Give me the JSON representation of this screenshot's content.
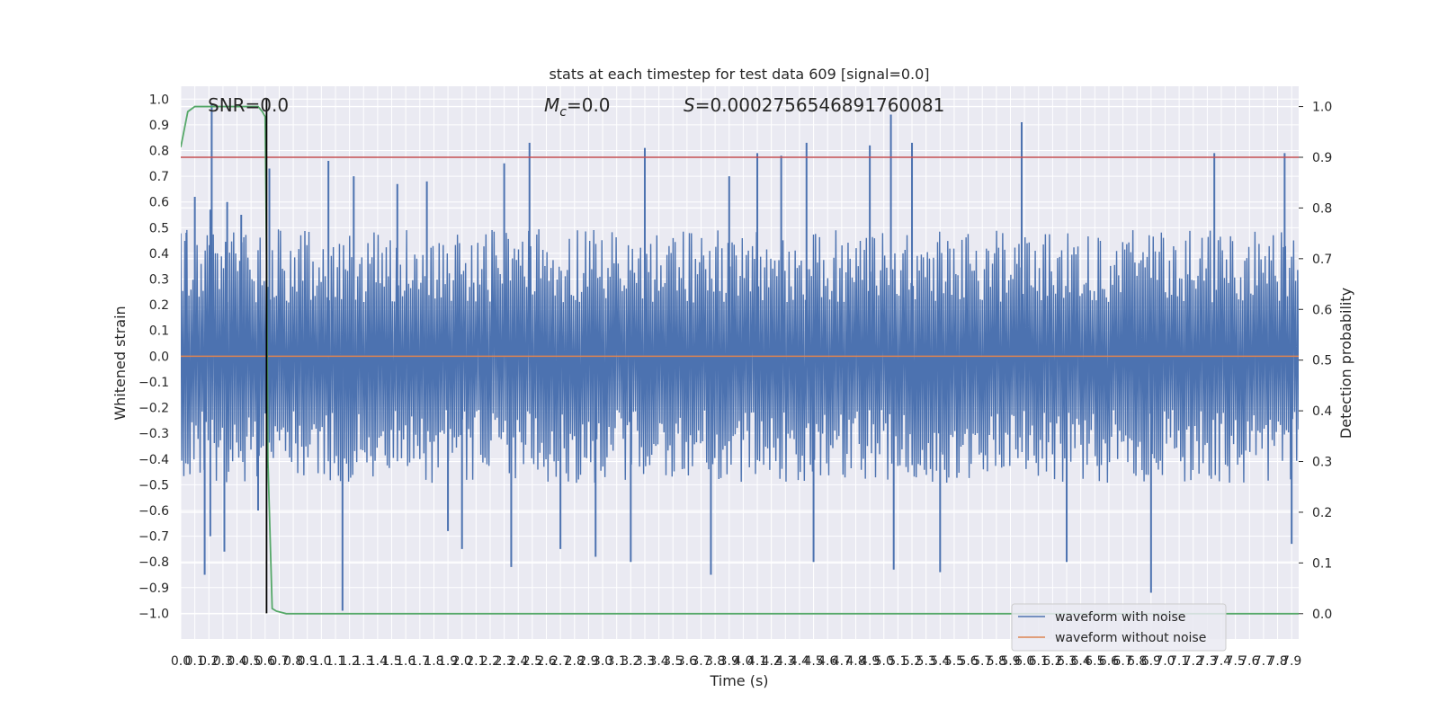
{
  "chart_data": {
    "type": "line",
    "title": "stats at each timestep for test data 609 [signal=0.0]",
    "xlabel": "Time (s)",
    "ylabel_left": "Whitened strain",
    "ylabel_right": "Detection probability",
    "xlim": [
      0.0,
      7.95
    ],
    "ylim_left": [
      -1.1,
      1.05
    ],
    "ylim_right": [
      -0.05,
      1.04
    ],
    "grid": true,
    "x_ticks": [
      "0.0",
      "0.1",
      "0.2",
      "0.3",
      "0.4",
      "0.5",
      "0.6",
      "0.7",
      "0.8",
      "0.9",
      "1.0",
      "1.1",
      "1.2",
      "1.3",
      "1.4",
      "1.5",
      "1.6",
      "1.7",
      "1.8",
      "1.9",
      "2.0",
      "2.1",
      "2.2",
      "2.3",
      "2.4",
      "2.5",
      "2.6",
      "2.7",
      "2.8",
      "2.9",
      "3.0",
      "3.1",
      "3.2",
      "3.3",
      "3.4",
      "3.5",
      "3.6",
      "3.7",
      "3.8",
      "3.9",
      "4.0",
      "4.1",
      "4.2",
      "4.3",
      "4.4",
      "4.5",
      "4.6",
      "4.7",
      "4.8",
      "4.9",
      "5.0",
      "5.1",
      "5.2",
      "5.3",
      "5.4",
      "5.5",
      "5.6",
      "5.7",
      "5.8",
      "5.9",
      "6.0",
      "6.1",
      "6.2",
      "6.3",
      "6.4",
      "6.5",
      "6.6",
      "6.7",
      "6.8",
      "6.9",
      "7.0",
      "7.1",
      "7.2",
      "7.3",
      "7.4",
      "7.5",
      "7.6",
      "7.7",
      "7.8",
      "7.9"
    ],
    "y_ticks_left": [
      "1.0",
      "0.9",
      "0.8",
      "0.7",
      "0.6",
      "0.5",
      "0.4",
      "0.3",
      "0.2",
      "0.1",
      "0.0",
      "−0.1",
      "−0.2",
      "−0.3",
      "−0.4",
      "−0.5",
      "−0.6",
      "−0.7",
      "−0.8",
      "−0.9",
      "−1.0"
    ],
    "y_ticks_right": [
      "1.0",
      "0.9",
      "0.8",
      "0.7",
      "0.6",
      "0.5",
      "0.4",
      "0.3",
      "0.2",
      "0.1",
      "0.0"
    ],
    "noise_envelope": {
      "typical_amplitude": 0.38,
      "spikes": [
        {
          "x": 0.04,
          "y": 0.48
        },
        {
          "x": 0.1,
          "y": 0.62
        },
        {
          "x": 0.17,
          "y": -0.85
        },
        {
          "x": 0.21,
          "y": 0.57
        },
        {
          "x": 0.21,
          "y": -0.7
        },
        {
          "x": 0.22,
          "y": 0.98
        },
        {
          "x": 0.31,
          "y": -0.76
        },
        {
          "x": 0.33,
          "y": 0.6
        },
        {
          "x": 0.43,
          "y": 0.55
        },
        {
          "x": 0.55,
          "y": -0.6
        },
        {
          "x": 0.63,
          "y": 0.73
        },
        {
          "x": 1.05,
          "y": 0.76
        },
        {
          "x": 1.15,
          "y": -0.99
        },
        {
          "x": 1.23,
          "y": 0.7
        },
        {
          "x": 1.54,
          "y": 0.67
        },
        {
          "x": 1.75,
          "y": 0.68
        },
        {
          "x": 1.9,
          "y": -0.68
        },
        {
          "x": 2.0,
          "y": -0.75
        },
        {
          "x": 2.3,
          "y": 0.75
        },
        {
          "x": 2.35,
          "y": -0.82
        },
        {
          "x": 2.48,
          "y": 0.83
        },
        {
          "x": 2.7,
          "y": -0.75
        },
        {
          "x": 2.95,
          "y": -0.78
        },
        {
          "x": 3.2,
          "y": -0.8
        },
        {
          "x": 3.3,
          "y": 0.81
        },
        {
          "x": 3.77,
          "y": -0.85
        },
        {
          "x": 3.9,
          "y": 0.7
        },
        {
          "x": 4.1,
          "y": 0.79
        },
        {
          "x": 4.27,
          "y": 0.78
        },
        {
          "x": 4.45,
          "y": 0.83
        },
        {
          "x": 4.5,
          "y": -0.8
        },
        {
          "x": 4.9,
          "y": 0.82
        },
        {
          "x": 5.05,
          "y": 0.94
        },
        {
          "x": 5.07,
          "y": -0.83
        },
        {
          "x": 5.2,
          "y": 0.83
        },
        {
          "x": 5.4,
          "y": -0.84
        },
        {
          "x": 5.98,
          "y": 0.91
        },
        {
          "x": 6.3,
          "y": -0.8
        },
        {
          "x": 6.9,
          "y": -0.92
        },
        {
          "x": 7.35,
          "y": 0.79
        },
        {
          "x": 7.85,
          "y": 0.79
        },
        {
          "x": 7.9,
          "y": -0.73
        }
      ]
    },
    "series": [
      {
        "name": "waveform with noise",
        "color": "#4c72b0",
        "axis": "left"
      },
      {
        "name": "waveform without noise",
        "color": "#dd8452",
        "axis": "left",
        "x": [
          0.0,
          7.95
        ],
        "y": [
          0.0,
          0.0
        ]
      },
      {
        "color": "#55a868",
        "axis": "right",
        "x": [
          0.0,
          0.05,
          0.1,
          0.2,
          0.55,
          0.58,
          0.6,
          0.61,
          0.62,
          0.65,
          0.68,
          0.75,
          7.95
        ],
        "y": [
          0.92,
          0.99,
          1.0,
          1.0,
          1.0,
          0.99,
          0.98,
          0.7,
          0.3,
          0.01,
          0.005,
          0.0,
          0.0
        ]
      }
    ],
    "hlines": [
      {
        "y": 0.9,
        "axis": "right",
        "color": "#c44e52"
      }
    ],
    "vlines": [
      {
        "x": 0.61,
        "color": "#000000",
        "y_from": -1.0,
        "y_to": 1.0,
        "axis": "left"
      }
    ],
    "annotations": {
      "snr": "SNR=0.0",
      "mc_symbol": "M",
      "mc_sub": "c",
      "mc_value": "=0.0",
      "s_symbol": "S",
      "s_value": "=0.0002756546891760081"
    },
    "legend": {
      "placement": "lower-right",
      "entries": [
        "waveform with noise",
        "waveform without noise"
      ]
    }
  }
}
